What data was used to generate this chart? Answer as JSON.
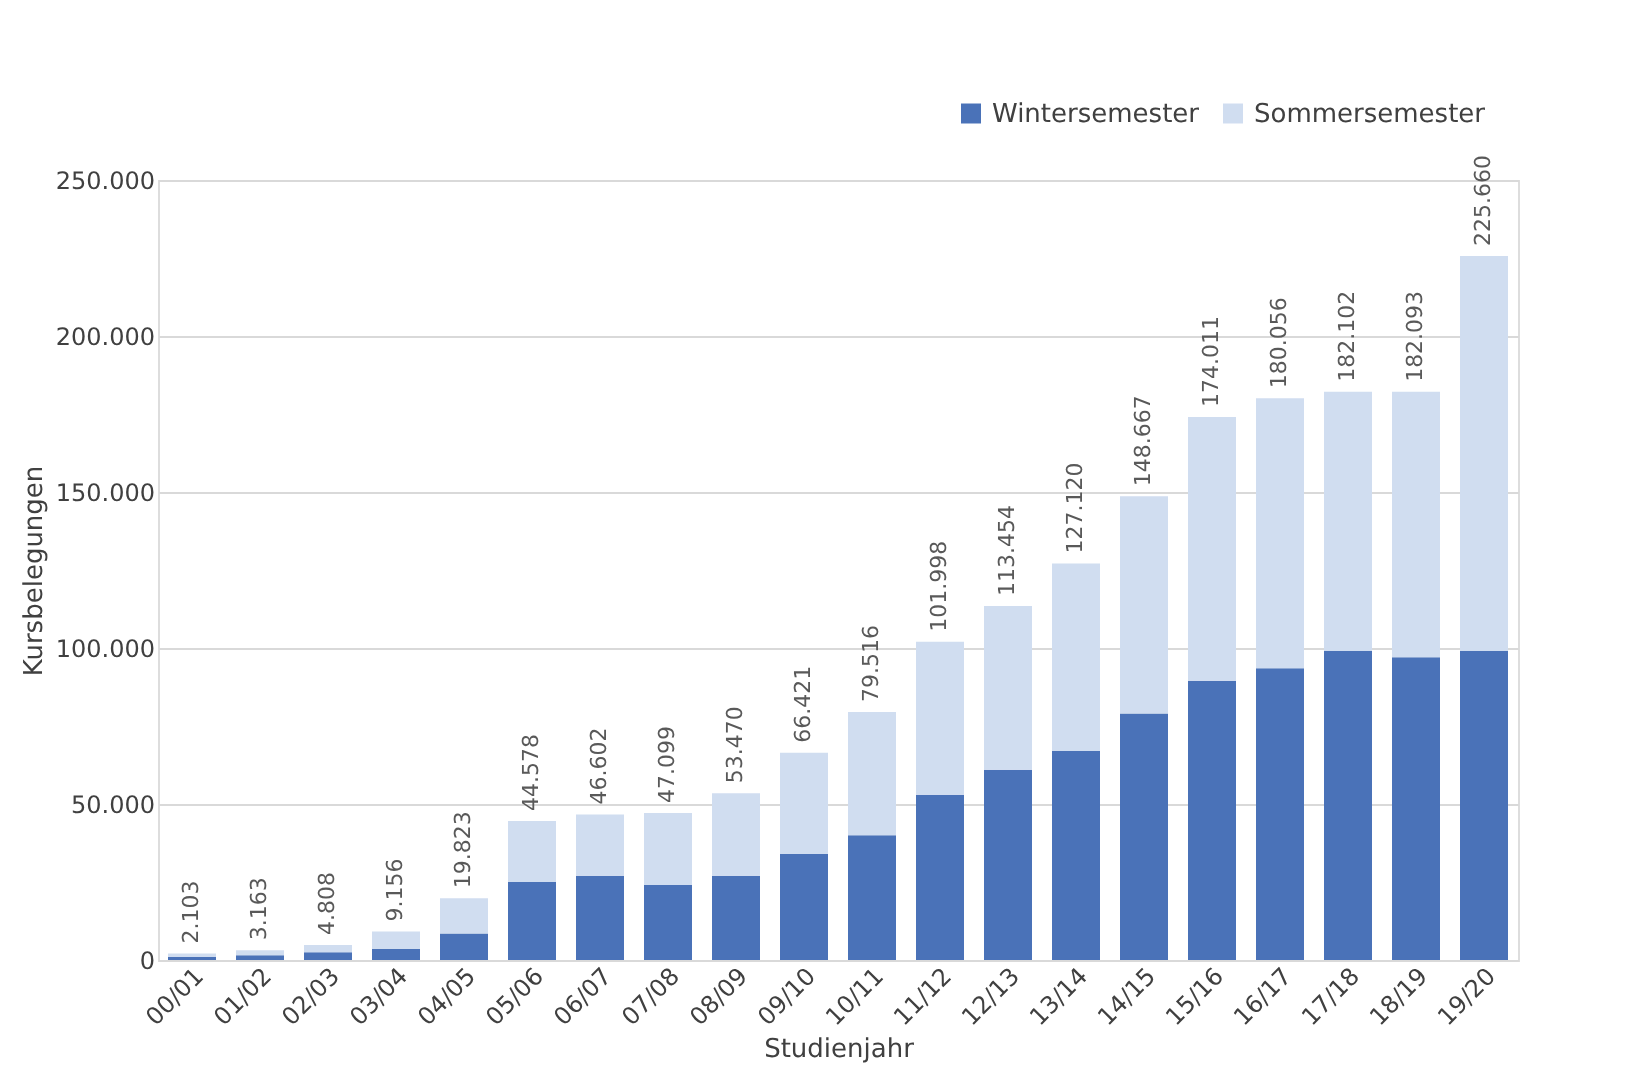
{
  "chart_data": {
    "type": "bar",
    "stacked": true,
    "xlabel": "Studienjahr",
    "ylabel": "Kursbelegungen",
    "categories": [
      "00/01",
      "01/02",
      "02/03",
      "03/04",
      "04/05",
      "05/06",
      "06/07",
      "07/08",
      "08/09",
      "09/10",
      "10/11",
      "11/12",
      "12/13",
      "13/14",
      "14/15",
      "15/16",
      "16/17",
      "17/18",
      "18/19",
      "19/20"
    ],
    "series": [
      {
        "name": "Wintersemester",
        "color": "#4a72b8",
        "values": [
          1000,
          1500,
          2500,
          3500,
          8500,
          25000,
          27000,
          24000,
          27000,
          34000,
          40000,
          53000,
          61000,
          67000,
          79000,
          89500,
          93500,
          99000,
          97000,
          99000
        ]
      },
      {
        "name": "Sommersemester",
        "color": "#d0ddf0",
        "values": [
          1103,
          1663,
          2308,
          5656,
          11323,
          19578,
          19602,
          23099,
          26470,
          32421,
          39516,
          48998,
          52454,
          60120,
          69667,
          84511,
          86556,
          83102,
          85093,
          126660
        ]
      }
    ],
    "totals": [
      "2.103",
      "3.163",
      "4.808",
      "9.156",
      "19.823",
      "44.578",
      "46.602",
      "47.099",
      "53.470",
      "66.421",
      "79.516",
      "101.998",
      "113.454",
      "127.120",
      "148.667",
      "174.011",
      "180.056",
      "182.102",
      "182.093",
      "225.660"
    ],
    "ylim": [
      0,
      250000
    ],
    "yticks": [
      {
        "value": 0,
        "label": "0"
      },
      {
        "value": 50000,
        "label": "50.000"
      },
      {
        "value": 100000,
        "label": "100.000"
      },
      {
        "value": 150000,
        "label": "150.000"
      },
      {
        "value": 200000,
        "label": "200.000"
      },
      {
        "value": 250000,
        "label": "250.000"
      }
    ],
    "grid": "y",
    "legend": "top right"
  }
}
